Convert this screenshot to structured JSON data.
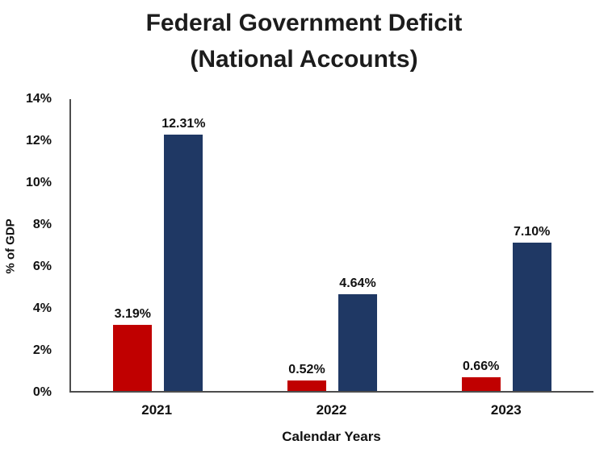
{
  "title": {
    "line1": "Federal Government Deficit",
    "line2": "(National Accounts)"
  },
  "chart_data": {
    "type": "bar",
    "title": "Federal Government Deficit (National Accounts)",
    "categories": [
      "2021",
      "2022",
      "2023"
    ],
    "series": [
      {
        "name": "deficit-red",
        "color": "#c00000",
        "values": [
          3.19,
          0.52,
          0.66
        ],
        "labels": [
          "3.19%",
          "0.52%",
          "0.66%"
        ]
      },
      {
        "name": "deficit-navy",
        "color": "#1f3864",
        "values": [
          12.31,
          4.64,
          7.1
        ],
        "labels": [
          "12.31%",
          "4.64%",
          "7.10%"
        ]
      }
    ],
    "xlabel": "Calendar Years",
    "ylabel": "% of GDP",
    "ylim": [
      0,
      14
    ],
    "yticks": [
      "0%",
      "2%",
      "4%",
      "6%",
      "8%",
      "10%",
      "12%",
      "14%"
    ],
    "grid": false,
    "legend": "none",
    "axis_color": "#4d4d4d"
  }
}
